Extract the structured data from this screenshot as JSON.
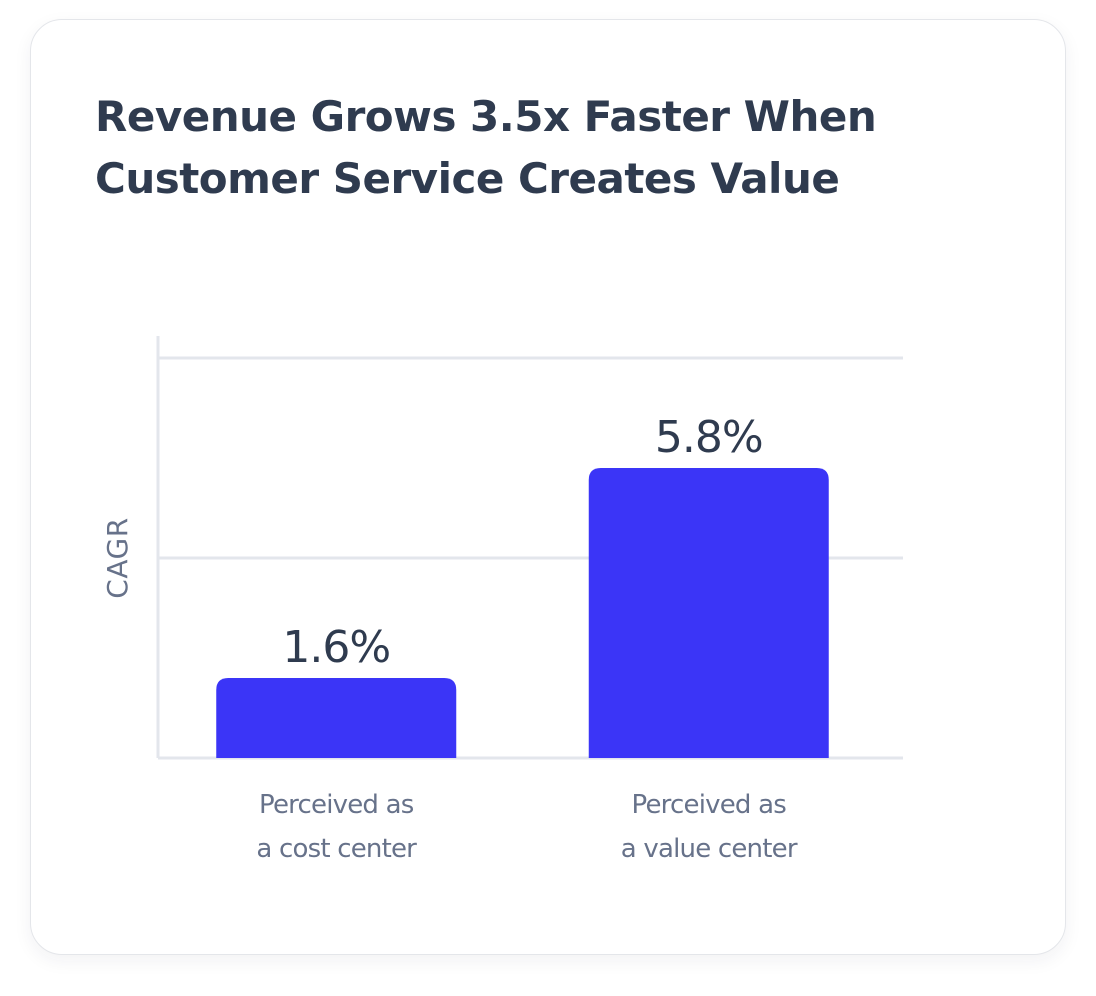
{
  "card": {
    "title_lines": [
      "Revenue Grows 3.5x Faster When",
      "Customer Service Creates Value"
    ]
  },
  "chart_data": {
    "type": "bar",
    "title": "Revenue Grows 3.5x Faster When Customer Service Creates Value",
    "xlabel": "",
    "ylabel": "CAGR",
    "categories": [
      [
        "Perceived as",
        "a cost center"
      ],
      [
        "Perceived as",
        "a value center"
      ]
    ],
    "values": [
      1.6,
      5.8
    ],
    "value_labels": [
      "1.6%",
      "5.8%"
    ],
    "ylim": [
      0,
      8
    ],
    "grid": true,
    "y_tick_labels_shown": false,
    "bar_color": "#3b35f7"
  },
  "colors": {
    "bar": "#3b35f7",
    "title": "#2f3b4f",
    "label": "#67728a",
    "grid": "#e3e6ec"
  }
}
